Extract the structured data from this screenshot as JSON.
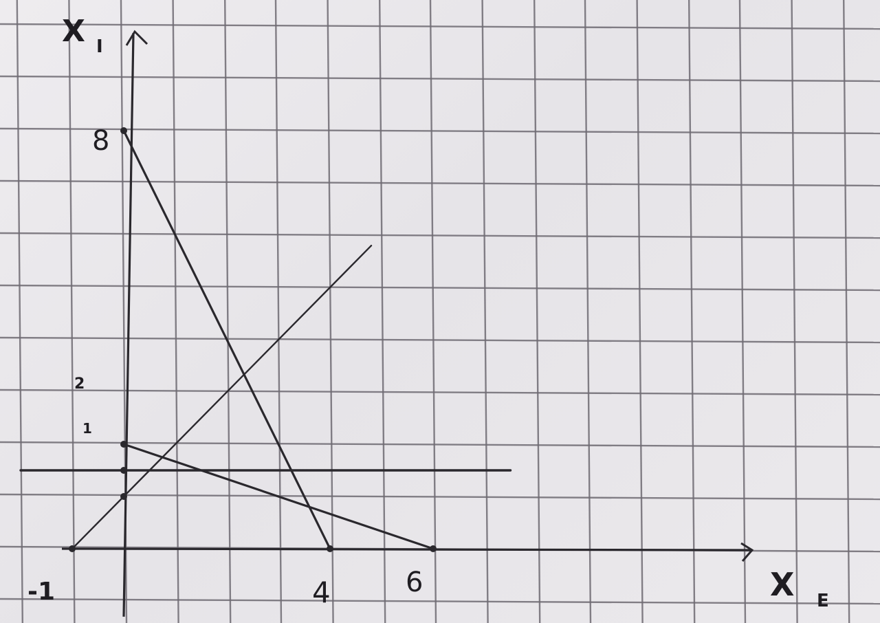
{
  "chart_data": {
    "type": "line",
    "title": "",
    "xlabel": "X",
    "xlabel_sub": "E",
    "ylabel": "X",
    "ylabel_sub": "I",
    "x_tick_labels": [
      "-1",
      "4",
      "6"
    ],
    "y_tick_labels": [
      "8",
      "2",
      "1"
    ],
    "grid": true,
    "series": [
      {
        "points": [
          [
            0,
            8
          ],
          [
            4,
            0
          ]
        ]
      },
      {
        "points": [
          [
            0,
            2
          ],
          [
            6,
            0
          ]
        ]
      },
      {
        "points": [
          [
            -1,
            0
          ],
          [
            0,
            1
          ],
          [
            4.8,
            5.8
          ]
        ]
      },
      {
        "points": [
          [
            -2,
            1.5
          ],
          [
            7.5,
            1.5
          ]
        ]
      }
    ]
  },
  "colors": {
    "paper": "#ebe9ec",
    "grid": "#6f6b73",
    "ink": "#2a282d"
  }
}
